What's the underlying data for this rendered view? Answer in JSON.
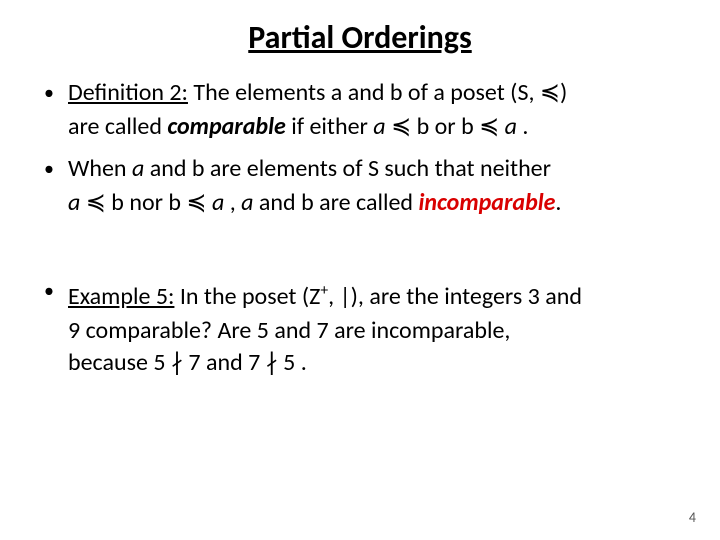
{
  "title": "Partial Orderings",
  "bullets": {
    "b1": {
      "label_pre": "Definition 2:",
      "text1": " The elements a and b of a poset (S, ≼)",
      "cont1_a": "are called ",
      "cont1_b": "comparable",
      "cont1_c": " if either ",
      "cont1_d": "a",
      "cont1_e": " ≼ b  or  b ≼ ",
      "cont1_f": "a",
      "cont1_g": " ."
    },
    "b2": {
      "text1_a": "When ",
      "text1_b": "a",
      "text1_c": " and b are elements of S such that neither",
      "cont1_a": " a",
      "cont1_b": " ≼ b nor b ≼ ",
      "cont1_c": "a",
      "cont1_d": " , ",
      "cont1_e": "a",
      "cont1_f": " and b are called ",
      "cont1_g": "incomparable",
      "cont1_h": "."
    },
    "b3": {
      "label_pre": "Example 5:",
      "text1_a": " In the poset (Z",
      "sup": "+",
      "text1_b": ", |), are the integers 3 and",
      "cont1": "9 comparable? Are 5 and 7 are incomparable,",
      "cont2": "because 5 ∤ 7 and 7 ∤ 5 ."
    }
  },
  "pageNumber": "4",
  "colors": {
    "text": "#000000",
    "accent": "#d90000",
    "background": "#ffffff"
  }
}
